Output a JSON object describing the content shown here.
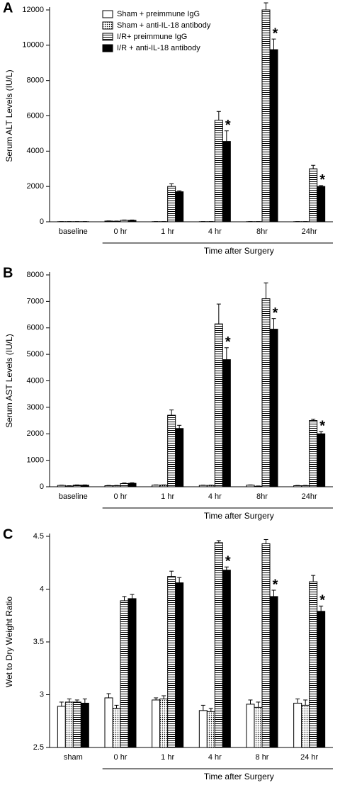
{
  "chart_data": [
    {
      "type": "bar",
      "panel_label": "A",
      "ylabel": "Serum ALT Levels (IU/L)",
      "xlabel": "Time after Surgery",
      "legend": true,
      "categories": [
        "baseline",
        "0 hr",
        "1 hr",
        "4 hr",
        "8hr",
        "24hr"
      ],
      "ylim": [
        0,
        12000
      ],
      "yticks": [
        0,
        2000,
        4000,
        6000,
        8000,
        10000,
        12000
      ],
      "series": [
        {
          "name": "Sham + preimmune IgG",
          "color": "#ffffff",
          "pattern": "none",
          "values": [
            10,
            40,
            10,
            10,
            10,
            10
          ],
          "errors": [
            5,
            10,
            5,
            5,
            5,
            5
          ]
        },
        {
          "name": "Sham + anti-IL-18 antibody",
          "color": "#ffffff",
          "pattern": "dots",
          "values": [
            10,
            30,
            10,
            10,
            10,
            10
          ],
          "errors": [
            5,
            10,
            5,
            5,
            5,
            5
          ]
        },
        {
          "name": "I/R+ preimmune IgG",
          "color": "#ffffff",
          "pattern": "hstripes",
          "values": [
            10,
            80,
            2000,
            5750,
            12000,
            3000
          ],
          "errors": [
            5,
            20,
            150,
            500,
            400,
            200
          ]
        },
        {
          "name": "I/R + anti-IL-18 antibody",
          "color": "#000000",
          "pattern": "solid",
          "values": [
            10,
            80,
            1700,
            4550,
            9750,
            2000
          ],
          "errors": [
            5,
            20,
            50,
            600,
            600,
            50
          ]
        }
      ],
      "annotations": [
        {
          "text": "*",
          "category": "4 hr"
        },
        {
          "text": "*",
          "category": "8hr"
        },
        {
          "text": "*",
          "category": "24hr"
        }
      ]
    },
    {
      "type": "bar",
      "panel_label": "B",
      "ylabel": "Serum AST Levels (IU/L)",
      "xlabel": "Time after Surgery",
      "legend": false,
      "categories": [
        "baseline",
        "0 hr",
        "1 hr",
        "4 hr",
        "8hr",
        "24hr"
      ],
      "ylim": [
        0,
        8000
      ],
      "yticks": [
        0,
        1000,
        2000,
        3000,
        4000,
        5000,
        6000,
        7000,
        8000
      ],
      "series": [
        {
          "color": "#ffffff",
          "pattern": "none",
          "values": [
            50,
            40,
            60,
            50,
            60,
            40
          ],
          "errors": [
            10,
            10,
            10,
            10,
            10,
            10
          ]
        },
        {
          "color": "#ffffff",
          "pattern": "dots",
          "values": [
            30,
            40,
            60,
            50,
            20,
            40
          ],
          "errors": [
            10,
            10,
            10,
            10,
            10,
            10
          ]
        },
        {
          "color": "#ffffff",
          "pattern": "hstripes",
          "values": [
            60,
            120,
            2700,
            6150,
            7100,
            2500
          ],
          "errors": [
            10,
            20,
            200,
            750,
            600,
            50
          ]
        },
        {
          "color": "#000000",
          "pattern": "solid",
          "values": [
            60,
            130,
            2200,
            4800,
            5950,
            2000
          ],
          "errors": [
            10,
            20,
            120,
            450,
            400,
            80
          ]
        }
      ],
      "annotations": [
        {
          "text": "*",
          "category": "4 hr"
        },
        {
          "text": "*",
          "category": "8hr"
        },
        {
          "text": "*",
          "category": "24hr"
        }
      ]
    },
    {
      "type": "bar",
      "panel_label": "C",
      "ylabel": "Wet to Dry Weight Ratio",
      "xlabel": "Time after Surgery",
      "legend": false,
      "categories": [
        "sham",
        "0 hr",
        "1 hr",
        "4 hr",
        "8 hr",
        "24 hr"
      ],
      "ylim": [
        2.5,
        4.5
      ],
      "yticks": [
        2.5,
        3,
        3.5,
        4,
        4.5
      ],
      "series": [
        {
          "color": "#ffffff",
          "pattern": "none",
          "values": [
            2.89,
            2.97,
            2.95,
            2.85,
            2.91,
            2.92
          ],
          "errors": [
            0.04,
            0.04,
            0.02,
            0.05,
            0.04,
            0.04
          ]
        },
        {
          "color": "#ffffff",
          "pattern": "dots",
          "values": [
            2.93,
            2.87,
            2.96,
            2.84,
            2.88,
            2.9
          ],
          "errors": [
            0.03,
            0.03,
            0.03,
            0.03,
            0.05,
            0.05
          ]
        },
        {
          "color": "#ffffff",
          "pattern": "hstripes",
          "values": [
            2.93,
            3.89,
            4.12,
            4.44,
            4.43,
            4.07
          ],
          "errors": [
            0.02,
            0.04,
            0.05,
            0.02,
            0.04,
            0.06
          ]
        },
        {
          "color": "#000000",
          "pattern": "solid",
          "values": [
            2.92,
            3.91,
            4.06,
            4.18,
            3.93,
            3.79
          ],
          "errors": [
            0.04,
            0.04,
            0.05,
            0.03,
            0.06,
            0.05
          ]
        }
      ],
      "annotations": [
        {
          "text": "*",
          "category": "4 hr"
        },
        {
          "text": "*",
          "category": "8 hr"
        },
        {
          "text": "*",
          "category": "24 hr"
        }
      ]
    }
  ]
}
